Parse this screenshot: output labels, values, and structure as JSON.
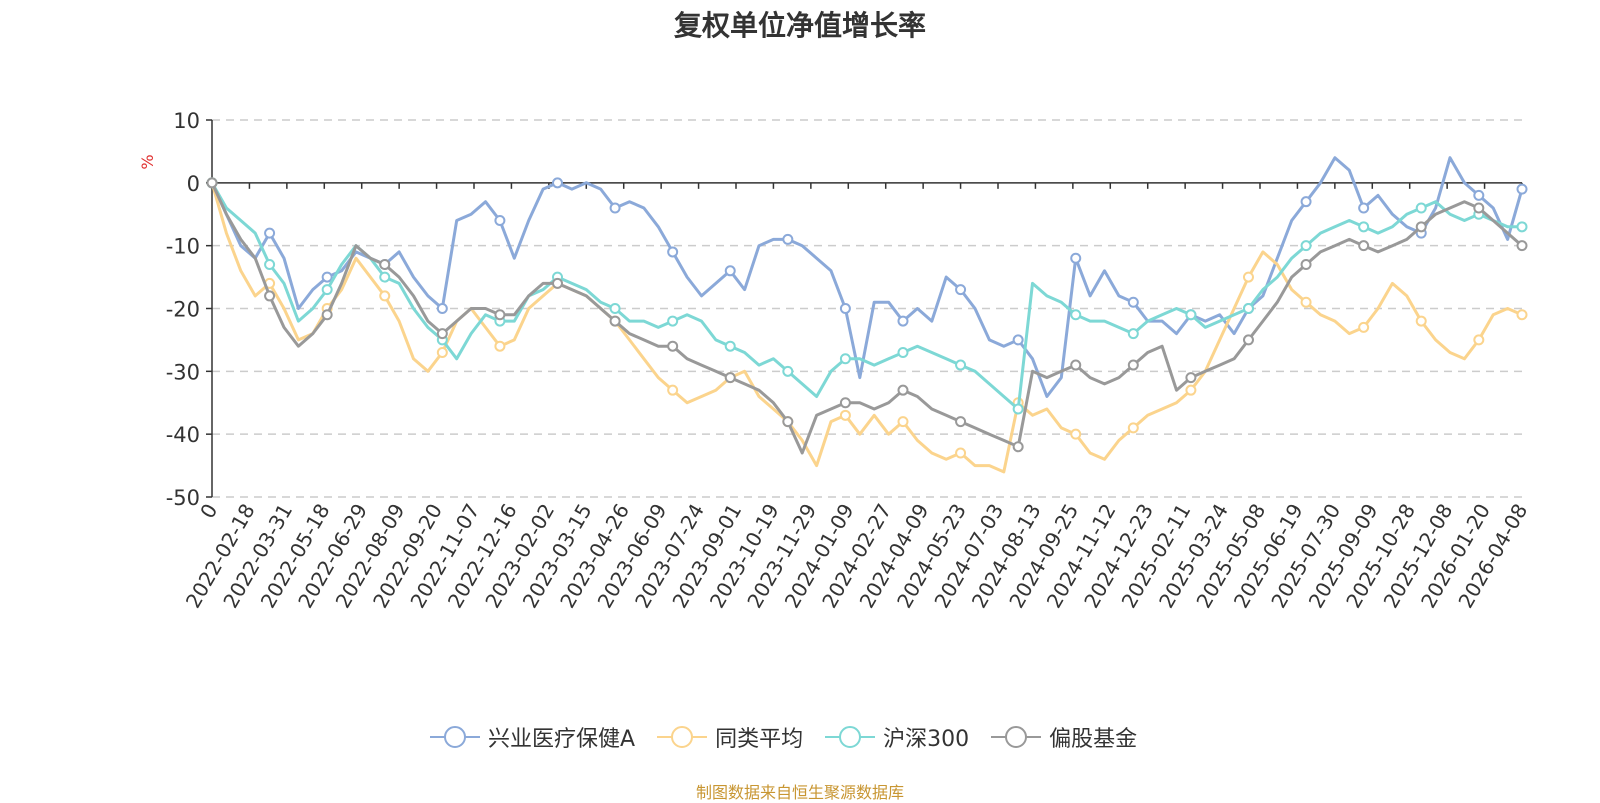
{
  "chart_data": {
    "type": "line",
    "title": "复权单位净值增长率",
    "ylabel": "%",
    "xlabel": "",
    "ylim": [
      -50,
      10
    ],
    "yticks": [
      10,
      0,
      -10,
      -20,
      -30,
      -40,
      -50
    ],
    "grid": true,
    "legend_position": "bottom",
    "x_tick_labels": [
      "0",
      "2022-02-18",
      "2022-03-31",
      "2022-05-18",
      "2022-06-29",
      "2022-08-09",
      "2022-09-20",
      "2022-11-07",
      "2022-12-16",
      "2023-02-02",
      "2023-03-15",
      "2023-04-26",
      "2023-06-09",
      "2023-07-24",
      "2023-09-01",
      "2023-10-19",
      "2023-11-29",
      "2024-01-09",
      "2024-02-27",
      "2024-04-09",
      "2024-05-23",
      "2024-07-03",
      "2024-08-13",
      "2024-09-25",
      "2024-11-12",
      "2024-12-23",
      "2025-02-11",
      "2025-03-24",
      "2025-05-08",
      "2025-06-19",
      "2025-07-30",
      "2025-09-09",
      "2025-10-28",
      "2025-12-08",
      "2026-01-20",
      "2026-04-08"
    ],
    "series": [
      {
        "name": "兴业医疗保健A",
        "color": "#8ba9d9",
        "values": [
          0,
          -5,
          -10,
          -12,
          -8,
          -12,
          -20,
          -17,
          -15,
          -14,
          -11,
          -12,
          -13,
          -11,
          -15,
          -18,
          -20,
          -6,
          -5,
          -3,
          -6,
          -12,
          -6,
          -1,
          0,
          -1,
          0,
          -1,
          -4,
          -3,
          -4,
          -7,
          -11,
          -15,
          -18,
          -16,
          -14,
          -17,
          -10,
          -9,
          -9,
          -10,
          -12,
          -14,
          -20,
          -31,
          -19,
          -19,
          -22,
          -20,
          -22,
          -15,
          -17,
          -20,
          -25,
          -26,
          -25,
          -28,
          -34,
          -31,
          -12,
          -18,
          -14,
          -18,
          -19,
          -22,
          -22,
          -24,
          -21,
          -22,
          -21,
          -24,
          -20,
          -18,
          -12,
          -6,
          -3,
          0,
          4,
          2,
          -4,
          -2,
          -5,
          -7,
          -8,
          -4,
          4,
          0,
          -2,
          -4,
          -9,
          -1
        ]
      },
      {
        "name": "同类平均",
        "color": "#fbd48d",
        "values": [
          0,
          -8,
          -14,
          -18,
          -16,
          -20,
          -25,
          -24,
          -20,
          -17,
          -12,
          -15,
          -18,
          -22,
          -28,
          -30,
          -27,
          -22,
          -20,
          -23,
          -26,
          -25,
          -20,
          -18,
          -16,
          -17,
          -18,
          -20,
          -22,
          -25,
          -28,
          -31,
          -33,
          -35,
          -34,
          -33,
          -31,
          -30,
          -34,
          -36,
          -38,
          -41,
          -45,
          -38,
          -37,
          -40,
          -37,
          -40,
          -38,
          -41,
          -43,
          -44,
          -43,
          -45,
          -45,
          -46,
          -35,
          -37,
          -36,
          -39,
          -40,
          -43,
          -44,
          -41,
          -39,
          -37,
          -36,
          -35,
          -33,
          -30,
          -25,
          -20,
          -15,
          -11,
          -13,
          -17,
          -19,
          -21,
          -22,
          -24,
          -23,
          -20,
          -16,
          -18,
          -22,
          -25,
          -27,
          -28,
          -25,
          -21,
          -20,
          -21
        ]
      },
      {
        "name": "沪深300",
        "color": "#7dd8d5",
        "values": [
          0,
          -4,
          -6,
          -8,
          -13,
          -16,
          -22,
          -20,
          -17,
          -13,
          -10,
          -12,
          -15,
          -16,
          -20,
          -23,
          -25,
          -28,
          -24,
          -21,
          -22,
          -22,
          -18,
          -17,
          -15,
          -16,
          -17,
          -19,
          -20,
          -22,
          -22,
          -23,
          -22,
          -21,
          -22,
          -25,
          -26,
          -27,
          -29,
          -28,
          -30,
          -32,
          -34,
          -30,
          -28,
          -28,
          -29,
          -28,
          -27,
          -26,
          -27,
          -28,
          -29,
          -30,
          -32,
          -34,
          -36,
          -16,
          -18,
          -19,
          -21,
          -22,
          -22,
          -23,
          -24,
          -22,
          -21,
          -20,
          -21,
          -23,
          -22,
          -21,
          -20,
          -17,
          -15,
          -12,
          -10,
          -8,
          -7,
          -6,
          -7,
          -8,
          -7,
          -5,
          -4,
          -3,
          -5,
          -6,
          -5,
          -6,
          -7,
          -7
        ]
      },
      {
        "name": "偏股基金",
        "color": "#999999",
        "values": [
          0,
          -5,
          -9,
          -12,
          -18,
          -23,
          -26,
          -24,
          -21,
          -16,
          -10,
          -12,
          -13,
          -15,
          -18,
          -22,
          -24,
          -22,
          -20,
          -20,
          -21,
          -21,
          -18,
          -16,
          -16,
          -17,
          -18,
          -20,
          -22,
          -24,
          -25,
          -26,
          -26,
          -28,
          -29,
          -30,
          -31,
          -32,
          -33,
          -35,
          -38,
          -43,
          -37,
          -36,
          -35,
          -35,
          -36,
          -35,
          -33,
          -34,
          -36,
          -37,
          -38,
          -39,
          -40,
          -41,
          -42,
          -30,
          -31,
          -30,
          -29,
          -31,
          -32,
          -31,
          -29,
          -27,
          -26,
          -33,
          -31,
          -30,
          -29,
          -28,
          -25,
          -22,
          -19,
          -15,
          -13,
          -11,
          -10,
          -9,
          -10,
          -11,
          -10,
          -9,
          -7,
          -5,
          -4,
          -3,
          -4,
          -6,
          -8,
          -10
        ]
      }
    ]
  },
  "legend": {
    "items": [
      {
        "label": "兴业医疗保健A",
        "color": "#8ba9d9"
      },
      {
        "label": "同类平均",
        "color": "#fbd48d"
      },
      {
        "label": "沪深300",
        "color": "#7dd8d5"
      },
      {
        "label": "偏股基金",
        "color": "#999999"
      }
    ]
  },
  "source_note": "制图数据来自恒生聚源数据库"
}
